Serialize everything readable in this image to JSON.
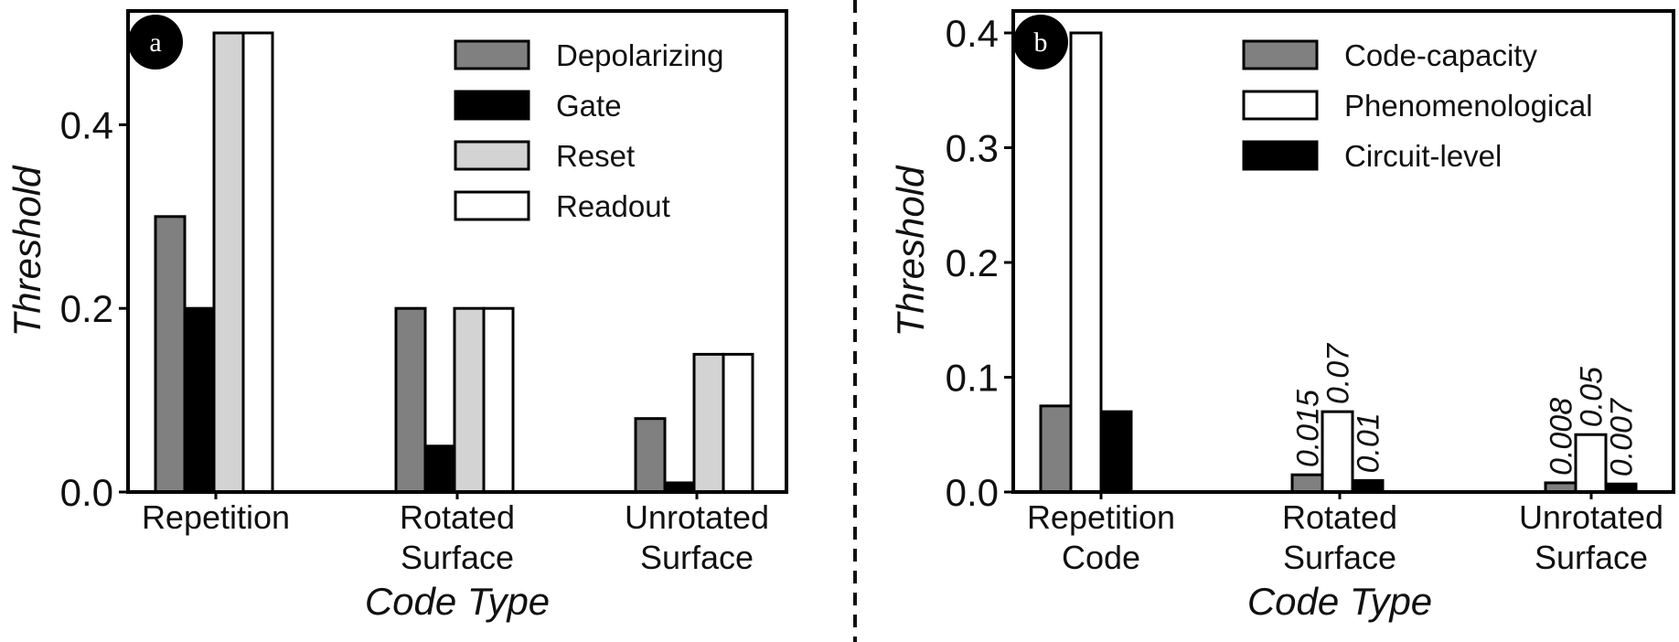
{
  "chart_data": [
    {
      "id": "a",
      "panel_badge": "a",
      "type": "bar",
      "xlabel": "Code Type",
      "ylabel": "Threshold",
      "ylim": [
        0,
        0.53
      ],
      "yticks": [
        0.0,
        0.2,
        0.4
      ],
      "ytick_labels": [
        "0.0",
        "0.2",
        "0.4"
      ],
      "categories": [
        [
          "Repetition"
        ],
        [
          "Rotated",
          "Surface"
        ],
        [
          "Unrotated",
          "Surface"
        ]
      ],
      "legend_position": "top-right",
      "grid": false,
      "series": [
        {
          "name": "Depolarizing",
          "color": "#808080",
          "values": [
            0.3,
            0.2,
            0.08
          ]
        },
        {
          "name": "Gate",
          "color": "#000000",
          "values": [
            0.2,
            0.05,
            0.01
          ]
        },
        {
          "name": "Reset",
          "color": "#d3d3d3",
          "values": [
            0.5,
            0.2,
            0.15
          ]
        },
        {
          "name": "Readout",
          "color": "#ffffff",
          "values": [
            0.5,
            0.2,
            0.15
          ]
        }
      ],
      "data_labels": []
    },
    {
      "id": "b",
      "panel_badge": "b",
      "type": "bar",
      "xlabel": "Code Type",
      "ylabel": "Threshold",
      "ylim": [
        0,
        0.42
      ],
      "yticks": [
        0.0,
        0.1,
        0.2,
        0.3,
        0.4
      ],
      "ytick_labels": [
        "0.0",
        "0.1",
        "0.2",
        "0.3",
        "0.4"
      ],
      "categories": [
        [
          "Repetition",
          "Code"
        ],
        [
          "Rotated",
          "Surface"
        ],
        [
          "Unrotated",
          "Surface"
        ]
      ],
      "legend_position": "top-right",
      "grid": false,
      "series": [
        {
          "name": "Code-capacity",
          "color": "#808080",
          "values": [
            0.075,
            0.015,
            0.008
          ]
        },
        {
          "name": "Phenomenological",
          "color": "#ffffff",
          "values": [
            0.4,
            0.07,
            0.05
          ]
        },
        {
          "name": "Circuit-level",
          "color": "#000000",
          "values": [
            0.07,
            0.01,
            0.007
          ]
        }
      ],
      "data_labels": [
        {
          "category": 1,
          "series": 0,
          "text": "0.015"
        },
        {
          "category": 1,
          "series": 1,
          "text": "0.07"
        },
        {
          "category": 1,
          "series": 2,
          "text": "0.01"
        },
        {
          "category": 2,
          "series": 0,
          "text": "0.008"
        },
        {
          "category": 2,
          "series": 1,
          "text": "0.05"
        },
        {
          "category": 2,
          "series": 2,
          "text": "0.007"
        }
      ]
    }
  ]
}
